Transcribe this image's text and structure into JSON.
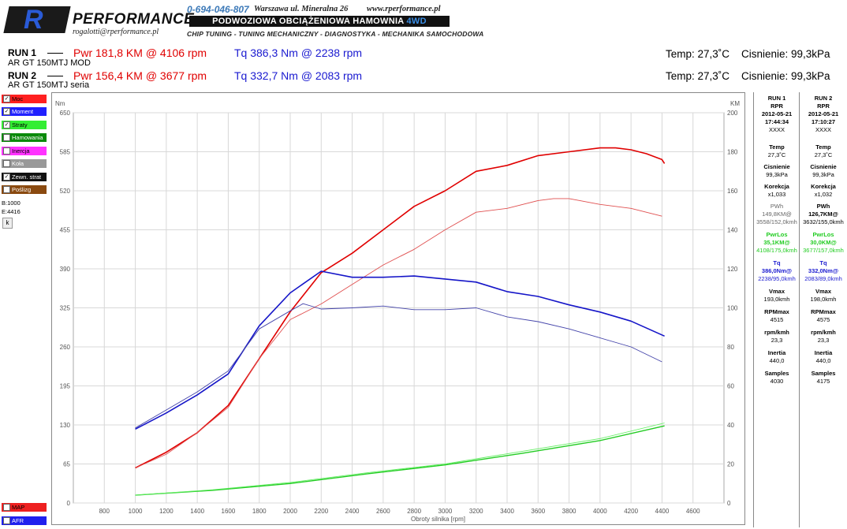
{
  "header": {
    "logo_letter": "R",
    "logo_text": "PERFORMANCE",
    "email": "rogalotti@rperformance.pl",
    "phone": "0-694-046-807",
    "address": "Warszawa ul. Mineralna 26",
    "website": "www.rperformance.pl",
    "banner_main": "PODWOZIOWA OBCIĄŻENIOWA HAMOWNIA ",
    "banner_accent": "4WD",
    "services": "CHIP TUNING - TUNING MECHANICZNY - DIAGNOSTYKA - MECHANIKA SAMOCHODOWA"
  },
  "runs": [
    {
      "label": "RUN 1",
      "name": "AR GT 150MTJ MOD",
      "pwr": "Pwr  181,8 KM @ 4106 rpm",
      "tq": "Tq 386,3 Nm @ 2238 rpm",
      "temp": "Temp: 27,3˚C",
      "pressure": "Cisnienie: 99,3kPa"
    },
    {
      "label": "RUN 2",
      "name": "AR GT 150MTJ seria",
      "pwr": "Pwr  156,4 KM @ 3677 rpm",
      "tq": "Tq 332,7 Nm @ 2083 rpm",
      "temp": "Temp: 27,3˚C",
      "pressure": "Cisnienie: 99,3kPa"
    }
  ],
  "checklist": [
    {
      "label": "Moc",
      "checked": true,
      "color": "#ff2020"
    },
    {
      "label": "Moment",
      "checked": true,
      "color": "#2020ff"
    },
    {
      "label": "Straty",
      "checked": true,
      "color": "#33ee33"
    },
    {
      "label": "Hamowania",
      "checked": false,
      "color": "#0a8a0a"
    },
    {
      "label": "Inercja",
      "checked": false,
      "color": "#ff33ff"
    },
    {
      "label": "Koła",
      "checked": false,
      "color": "#999999"
    },
    {
      "label": "Zewn. strat",
      "checked": true,
      "color": "#111111"
    },
    {
      "label": "Poślizg",
      "checked": false,
      "color": "#8a4a10"
    }
  ],
  "range": {
    "begin": "B:1000",
    "end": "E:4416",
    "button": "k"
  },
  "bottom_items": [
    {
      "label": "MAP",
      "color": "#ee2020"
    },
    {
      "label": "AFR",
      "color": "#2020ee"
    }
  ],
  "panel": {
    "run1": {
      "head": [
        "RUN 1",
        "RPR",
        "2012-05-21",
        "17:44:34",
        "XXXX"
      ],
      "temp_label": "Temp",
      "temp": "27,3˚C",
      "press_label": "Cisnienie",
      "press": "99,3kPa",
      "corr_label": "Korekcja",
      "corr": "x1,033",
      "pwh_label": "PWh",
      "pwh": "149,8KM@",
      "pwh_sub": "3558/152,0kmh",
      "pwrlos_label": "PwrLos",
      "pwrlos": "35,1KM@",
      "pwrlos_sub": "4108/175,0kmh",
      "tq_label": "Tq",
      "tq": "386,0Nm@",
      "tq_sub": "2238/95,0kmh",
      "vmax_label": "Vmax",
      "vmax": "193,0kmh",
      "rpmmax_label": "RPMmax",
      "rpmmax": "4515",
      "rpmkmh_label": "rpm/kmh",
      "rpmkmh": "23,3",
      "inertia_label": "Inertia",
      "inertia": "440,0",
      "samples_label": "Samples",
      "samples": "4030"
    },
    "run2": {
      "head": [
        "RUN 2",
        "RPR",
        "2012-05-21",
        "17:10:27",
        "XXXX"
      ],
      "temp_label": "Temp",
      "temp": "27,3˚C",
      "press_label": "Cisnienie",
      "press": "99,3kPa",
      "corr_label": "Korekcja",
      "corr": "x1,032",
      "pwh_label": "PWh",
      "pwh": "126,7KM@",
      "pwh_sub": "3632/155,0kmh",
      "pwrlos_label": "PwrLos",
      "pwrlos": "30,0KM@",
      "pwrlos_sub": "3677/157,0kmh",
      "tq_label": "Tq",
      "tq": "332,0Nm@",
      "tq_sub": "2083/89,0kmh",
      "vmax_label": "Vmax",
      "vmax": "198,0kmh",
      "rpmmax_label": "RPMmax",
      "rpmmax": "4575",
      "rpmkmh_label": "rpm/kmh",
      "rpmkmh": "23,3",
      "inertia_label": "Inertia",
      "inertia": "440,0",
      "samples_label": "Samples",
      "samples": "4175"
    }
  },
  "chart_data": {
    "type": "line",
    "xlabel": "Obroty silnika [rpm]",
    "ylabel_left": "Nm",
    "ylabel_right": "KM",
    "xlim": [
      600,
      4800
    ],
    "ylim_left": [
      0,
      650
    ],
    "ylim_right": [
      0,
      200
    ],
    "x_ticks": [
      800,
      1000,
      1200,
      1400,
      1600,
      1800,
      2000,
      2200,
      2400,
      2600,
      2800,
      3000,
      3200,
      3400,
      3600,
      3800,
      4000,
      4200,
      4400,
      4600
    ],
    "y_ticks_left": [
      0,
      65,
      130,
      195,
      260,
      325,
      390,
      455,
      520,
      585,
      650
    ],
    "y_ticks_right": [
      0,
      20,
      40,
      60,
      80,
      100,
      120,
      140,
      160,
      180,
      200
    ],
    "grid": true,
    "series": [
      {
        "name": "Moc",
        "run": "RUN 1",
        "axis": "right",
        "color": "#e00000",
        "width": 1.6,
        "x": [
          1000,
          1200,
          1400,
          1600,
          1800,
          2000,
          2200,
          2400,
          2600,
          2800,
          3000,
          3200,
          3400,
          3600,
          3800,
          4000,
          4100,
          4200,
          4300,
          4400,
          4416
        ],
        "y": [
          18,
          26,
          36,
          50,
          74,
          98,
          118,
          128,
          140,
          152,
          160,
          170,
          173,
          178,
          180,
          182,
          182,
          181,
          179,
          176,
          174
        ]
      },
      {
        "name": "Moc",
        "run": "RUN 2",
        "axis": "right",
        "color": "#e05050",
        "width": 0.9,
        "x": [
          1000,
          1200,
          1400,
          1600,
          1800,
          2000,
          2200,
          2400,
          2600,
          2800,
          3000,
          3200,
          3400,
          3600,
          3700,
          3800,
          4000,
          4200,
          4400
        ],
        "y": [
          18,
          25,
          36,
          49,
          74,
          94,
          102,
          112,
          122,
          130,
          140,
          149,
          151,
          155,
          156,
          156,
          153,
          151,
          147
        ]
      },
      {
        "name": "Moment",
        "run": "RUN 1",
        "axis": "left",
        "color": "#1515c8",
        "width": 1.6,
        "x": [
          1000,
          1200,
          1400,
          1600,
          1800,
          2000,
          2200,
          2400,
          2600,
          2800,
          3000,
          3200,
          3400,
          3600,
          3800,
          4000,
          4200,
          4416
        ],
        "y": [
          123,
          150,
          180,
          215,
          295,
          350,
          386,
          376,
          376,
          378,
          373,
          368,
          352,
          344,
          330,
          318,
          303,
          278
        ]
      },
      {
        "name": "Moment",
        "run": "RUN 2",
        "axis": "left",
        "color": "#4444aa",
        "width": 0.9,
        "x": [
          1000,
          1200,
          1400,
          1600,
          1800,
          2000,
          2083,
          2200,
          2400,
          2600,
          2800,
          3000,
          3200,
          3400,
          3600,
          3800,
          4000,
          4200,
          4400
        ],
        "y": [
          125,
          155,
          185,
          220,
          290,
          320,
          332,
          323,
          325,
          328,
          322,
          322,
          325,
          310,
          302,
          290,
          275,
          260,
          235
        ]
      },
      {
        "name": "Straty",
        "run": "RUN 1",
        "axis": "right",
        "color": "#22cc22",
        "width": 1.4,
        "x": [
          1000,
          1500,
          2000,
          2500,
          3000,
          3500,
          4000,
          4416
        ],
        "y": [
          4,
          6.5,
          10,
          15,
          19.5,
          25.5,
          32,
          39.5
        ]
      },
      {
        "name": "Straty",
        "run": "RUN 2",
        "axis": "right",
        "color": "#66ee66",
        "width": 0.9,
        "x": [
          1000,
          1500,
          2000,
          2500,
          3000,
          3500,
          4000,
          4416
        ],
        "y": [
          4,
          6.8,
          10.5,
          15.5,
          20,
          26.5,
          33,
          41
        ]
      }
    ]
  }
}
